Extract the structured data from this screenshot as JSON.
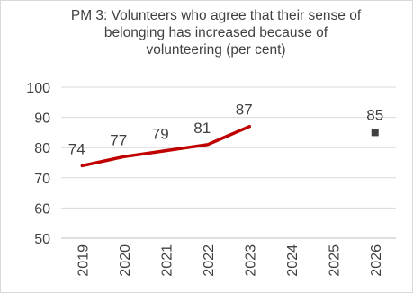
{
  "chart_data": {
    "type": "line",
    "title": [
      "PM 3: Volunteers who agree that their sense of",
      "belonging has increased because of",
      "volunteering (per cent)"
    ],
    "xlabel": "",
    "ylabel": "",
    "ylim": [
      50,
      100
    ],
    "yticks": [
      "50",
      "60",
      "70",
      "80",
      "90",
      "100"
    ],
    "categories": [
      "2019",
      "2020",
      "2021",
      "2022",
      "2023",
      "2024",
      "2025",
      "2026"
    ],
    "series": [
      {
        "type": "line",
        "color": "#c00000",
        "values": [
          74,
          77,
          79,
          81,
          87,
          null,
          null,
          null
        ],
        "labels": [
          "74",
          "77",
          "79",
          "81",
          "87",
          "",
          "",
          ""
        ]
      },
      {
        "type": "marker",
        "color": "#404040",
        "values": [
          null,
          null,
          null,
          null,
          null,
          null,
          null,
          85
        ],
        "labels": [
          "",
          "",
          "",
          "",
          "",
          "",
          "",
          "85"
        ]
      }
    ],
    "grid": true
  }
}
